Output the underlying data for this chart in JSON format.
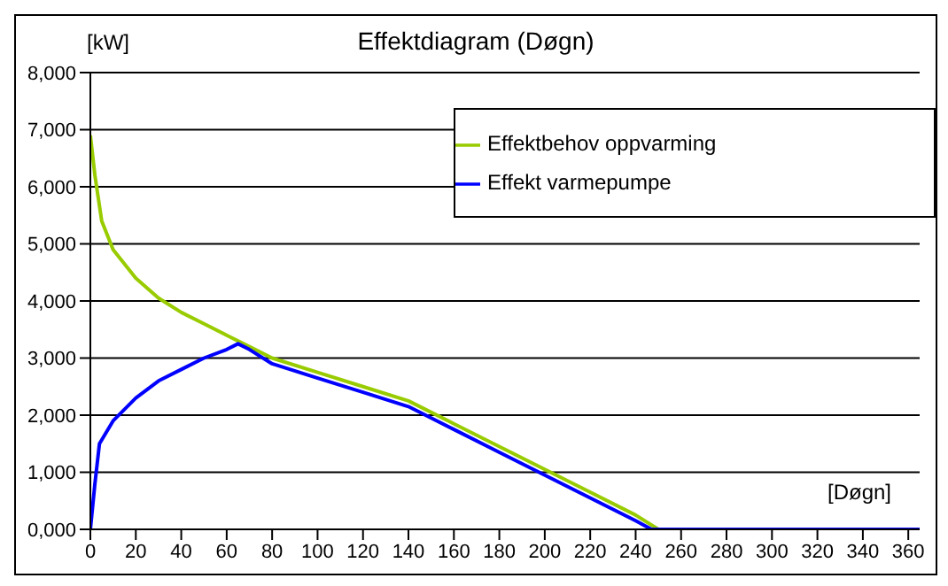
{
  "chart_data": {
    "type": "line",
    "title": "Effektdiagram (Døgn)",
    "annotations": [
      "[Døgn]"
    ],
    "ylabel": "[kW]",
    "series": [
      {
        "name": "Effektbehov oppvarming",
        "color": "#99cc00",
        "x": [
          0,
          2,
          5,
          10,
          20,
          30,
          40,
          50,
          60,
          70,
          80,
          100,
          120,
          140,
          160,
          180,
          200,
          220,
          240,
          250,
          365
        ],
        "values": [
          6900,
          6200,
          5400,
          4900,
          4400,
          4050,
          3800,
          3600,
          3400,
          3200,
          3000,
          2750,
          2500,
          2250,
          1850,
          1450,
          1050,
          650,
          250,
          0,
          0
        ]
      },
      {
        "name": "Effekt varmepumpe",
        "color": "#0000ff",
        "x": [
          0,
          2,
          4,
          10,
          20,
          30,
          40,
          50,
          60,
          65,
          70,
          80,
          100,
          120,
          140,
          160,
          180,
          200,
          220,
          240,
          247,
          365
        ],
        "values": [
          0,
          800,
          1500,
          1900,
          2300,
          2600,
          2800,
          3000,
          3150,
          3250,
          3150,
          2900,
          2650,
          2400,
          2150,
          1750,
          1350,
          950,
          550,
          150,
          0,
          0
        ]
      }
    ],
    "xlim": [
      0,
      365
    ],
    "xticks": [
      0,
      20,
      40,
      60,
      80,
      100,
      120,
      140,
      160,
      180,
      200,
      220,
      240,
      260,
      280,
      300,
      320,
      340,
      360
    ],
    "ylim": [
      0,
      8000
    ],
    "yticks": [
      {
        "value": 0,
        "label": "0,000"
      },
      {
        "value": 1000,
        "label": "1,000"
      },
      {
        "value": 2000,
        "label": "2,000"
      },
      {
        "value": 3000,
        "label": "3,000"
      },
      {
        "value": 4000,
        "label": "4,000"
      },
      {
        "value": 5000,
        "label": "5,000"
      },
      {
        "value": 6000,
        "label": "6,000"
      },
      {
        "value": 7000,
        "label": "7,000"
      },
      {
        "value": 8000,
        "label": "8,000"
      }
    ],
    "grid": "y",
    "legend": "top right",
    "marker": "none",
    "line_style": "solid"
  }
}
